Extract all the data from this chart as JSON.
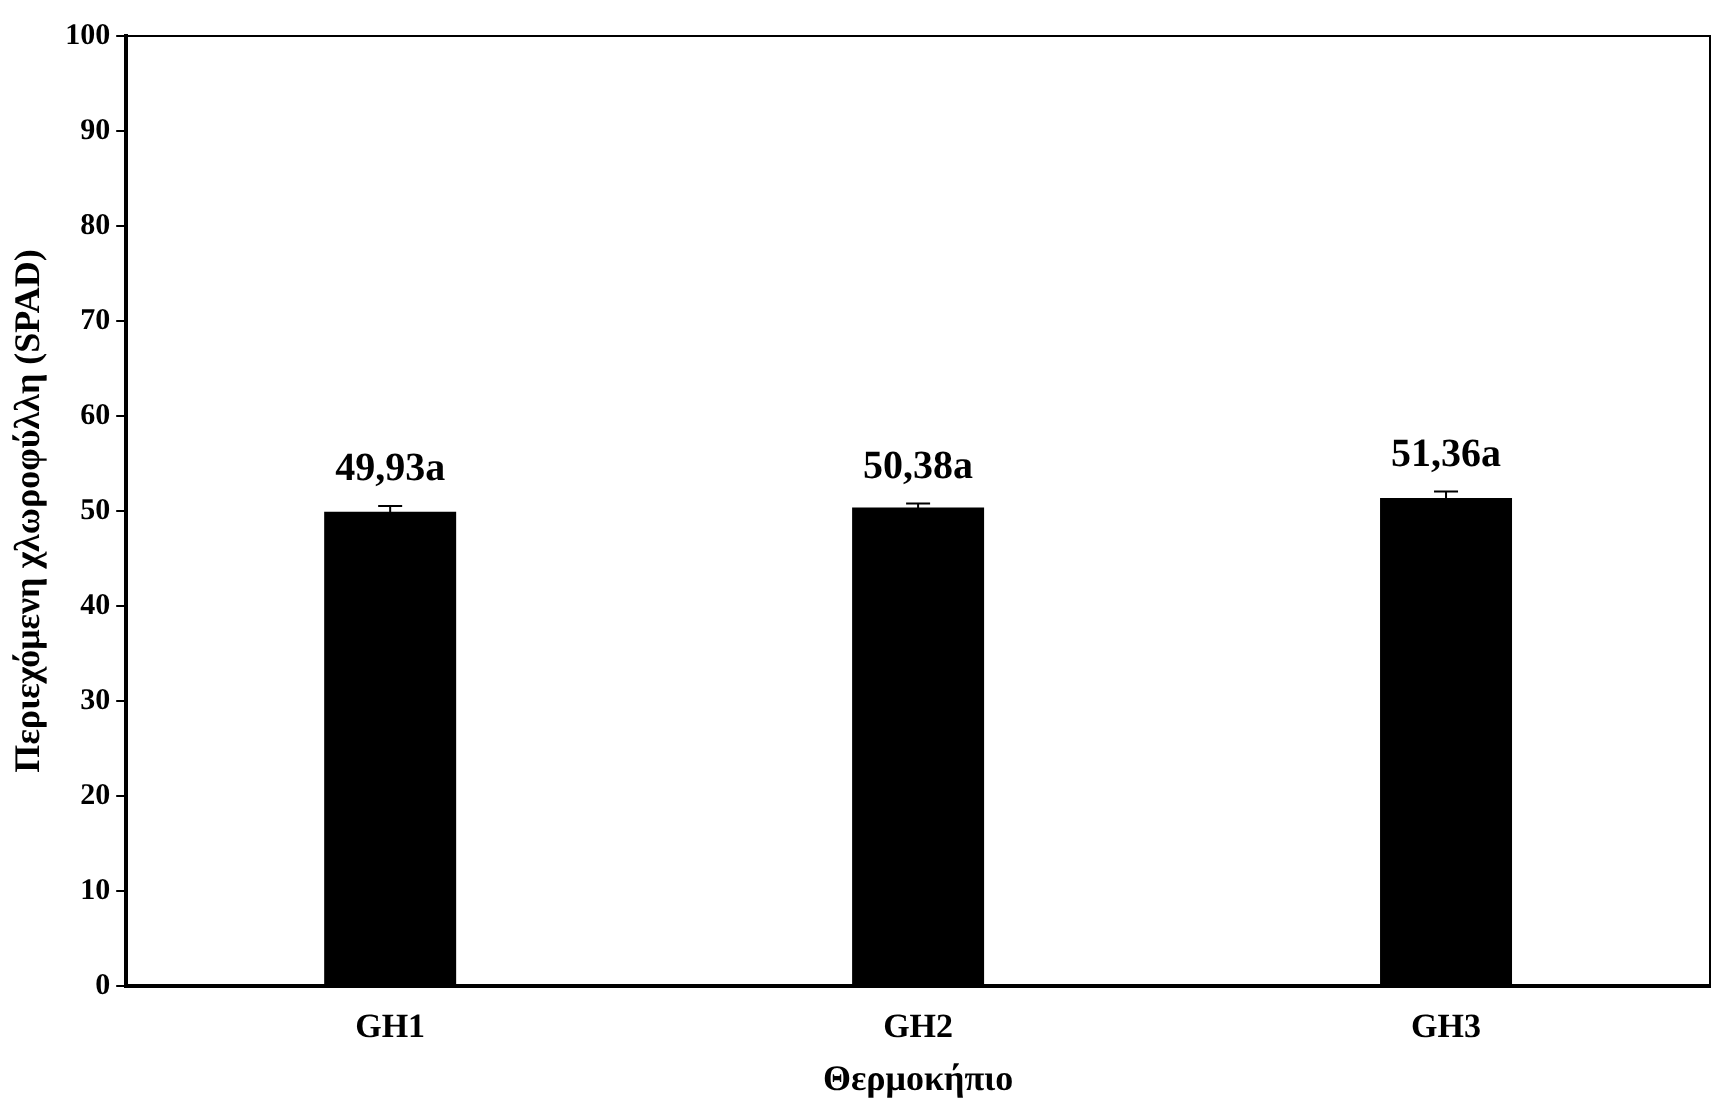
{
  "chart_data": {
    "type": "bar",
    "xlabel": "Θερμοκήπιο",
    "ylabel": "Περιεχόμενη χλωροφύλλη (SPAD)",
    "categories": [
      "GH1",
      "GH2",
      "GH3"
    ],
    "values": [
      49.93,
      50.38,
      51.36
    ],
    "errors": [
      0.6,
      0.4,
      0.7
    ],
    "value_labels": [
      "49,93a",
      "50,38a",
      "51,36a"
    ],
    "color": "#000000",
    "ylim": [
      0,
      100
    ],
    "yticks": [
      0,
      10,
      20,
      30,
      40,
      50,
      60,
      70,
      80,
      90,
      100
    ],
    "grid": false
  }
}
